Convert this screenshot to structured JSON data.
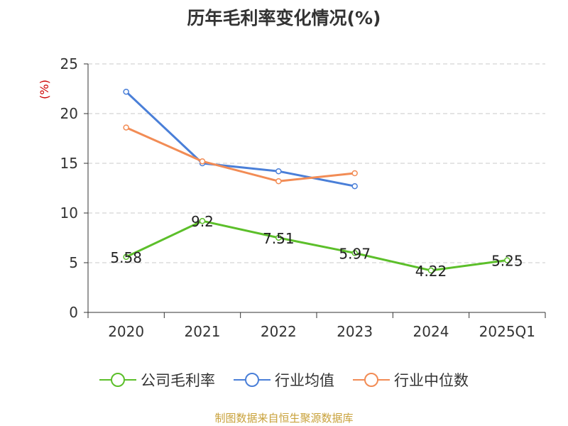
{
  "chart_data": {
    "type": "line",
    "title": "历年毛利率变化情况(%)",
    "ylabel": "(%)",
    "xlabel": "",
    "categories": [
      "2020",
      "2021",
      "2022",
      "2023",
      "2024",
      "2025Q1"
    ],
    "ylim": [
      0,
      25
    ],
    "yticks": [
      "0",
      "5",
      "10",
      "15",
      "20",
      "25"
    ],
    "grid": true,
    "legend_position": "bottom",
    "series": [
      {
        "name": "公司毛利率",
        "color": "#5cbf2a",
        "values": [
          5.58,
          9.2,
          7.51,
          5.97,
          4.22,
          5.25
        ],
        "labels": [
          "5.58",
          "9.2",
          "7.51",
          "5.97",
          "4.22",
          "5.25"
        ]
      },
      {
        "name": "行业均值",
        "color": "#4a7fd8",
        "values": [
          22.2,
          15.0,
          14.2,
          12.7,
          null,
          null
        ]
      },
      {
        "name": "行业中位数",
        "color": "#f28c55",
        "values": [
          18.6,
          15.2,
          13.2,
          14.0,
          null,
          null
        ]
      }
    ]
  },
  "source": "制图数据来自恒生聚源数据库",
  "ylabel_color": "#cc0000"
}
